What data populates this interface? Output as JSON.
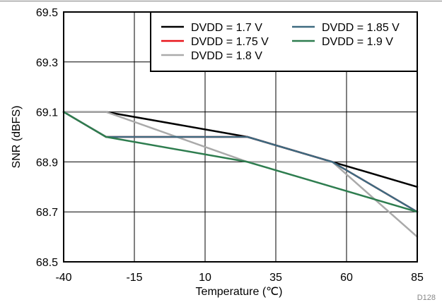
{
  "chart_data": {
    "type": "line",
    "xlabel": "Temperature (℃)",
    "ylabel": "SNR (dBFS)",
    "x_ticks": [
      -40,
      -15,
      10,
      35,
      60,
      85
    ],
    "x_tick_labels": [
      "-40",
      "-15",
      "10",
      "35",
      "60",
      "85"
    ],
    "y_ticks": [
      68.5,
      68.7,
      68.9,
      69.1,
      69.3,
      69.5
    ],
    "y_tick_labels": [
      "68.5",
      "68.7",
      "68.9",
      "69.1",
      "69.3",
      "69.5"
    ],
    "xlim": [
      -40,
      85
    ],
    "ylim": [
      68.5,
      69.5
    ],
    "grid": true,
    "legend_position": "top-right",
    "footnote": "D128",
    "x": [
      -40,
      -25,
      25,
      55,
      85
    ],
    "series": [
      {
        "name": "DVDD = 1.7 V",
        "color": "#000000",
        "values": [
          69.1,
          69.1,
          69.0,
          68.9,
          68.8
        ]
      },
      {
        "name": "DVDD = 1.75 V",
        "color": "#e8141b",
        "values": [
          69.1,
          69.0,
          69.0,
          68.9,
          68.7
        ]
      },
      {
        "name": "DVDD = 1.8 V",
        "color": "#aaaaaa",
        "values": [
          69.1,
          69.1,
          68.9,
          68.9,
          68.6
        ]
      },
      {
        "name": "DVDD = 1.85 V",
        "color": "#3d6a80",
        "values": [
          69.1,
          69.0,
          69.0,
          68.9,
          68.7
        ]
      },
      {
        "name": "DVDD = 1.9 V",
        "color": "#2e7d4f",
        "values": [
          69.1,
          69.0,
          68.9,
          68.8,
          68.7
        ]
      }
    ],
    "legend_order": [
      0,
      3,
      1,
      4,
      2
    ]
  }
}
